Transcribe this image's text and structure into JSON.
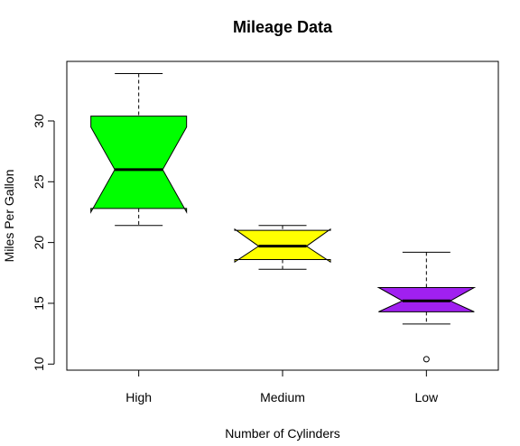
{
  "chart_data": {
    "type": "boxplot",
    "title": "Mileage Data",
    "xlabel": "Number of Cylinders",
    "ylabel": "Miles Per Gallon",
    "notched": true,
    "ylim": [
      9.5,
      34.9
    ],
    "yticks": [
      10,
      15,
      20,
      25,
      30
    ],
    "categories": [
      "High",
      "Medium",
      "Low"
    ],
    "boxes": [
      {
        "category": "High",
        "color": "#00ff00",
        "whisker_low": 21.4,
        "q1": 22.8,
        "median": 26.0,
        "q3": 30.4,
        "whisker_high": 33.9,
        "notch_low": 22.5,
        "notch_high": 29.5,
        "outliers": []
      },
      {
        "category": "Medium",
        "color": "#ffff00",
        "whisker_low": 17.8,
        "q1": 18.6,
        "median": 19.7,
        "q3": 21.0,
        "whisker_high": 21.4,
        "notch_low": 18.4,
        "notch_high": 21.1,
        "outliers": []
      },
      {
        "category": "Low",
        "color": "#a020f0",
        "whisker_low": 13.3,
        "q1": 14.3,
        "median": 15.2,
        "q3": 16.3,
        "whisker_high": 19.2,
        "notch_low": 14.3,
        "notch_high": 16.3,
        "outliers": [
          10.4
        ]
      }
    ],
    "grid": false,
    "legend": "none"
  }
}
